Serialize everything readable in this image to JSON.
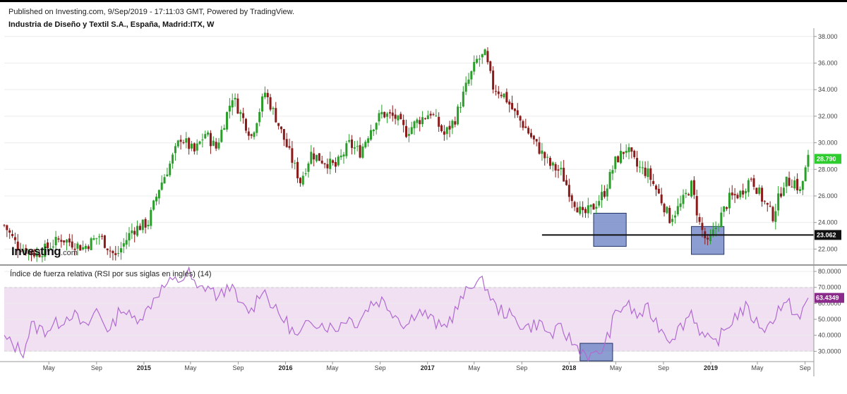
{
  "header": {
    "published": "Published on Investing.com, 9/Sep/2019 - 17:11:03 GMT, Powered by TradingView.",
    "instrument": "Industria de Diseño y Textil S.A., España, Madrid:ITX, W"
  },
  "logo": {
    "main": "Investing",
    "suffix": ".com"
  },
  "colors": {
    "up": "#2a9d2a",
    "down": "#8b1a1a",
    "rsi_line": "#b06ad0",
    "rsi_band": "#f1e0f2",
    "box": "#6f86c6",
    "last_price_tag": "#2ecc2e",
    "rsi_tag": "#8a2a8a"
  },
  "chart_data": [
    {
      "type": "candlestick",
      "title": "Industria de Diseño y Textil S.A., España, Madrid:ITX, W",
      "interval": "weekly",
      "ylim": [
        20.8,
        38.2
      ],
      "y_ticks": [
        "22.000",
        "24.000",
        "26.000",
        "28.000",
        "30.000",
        "32.000",
        "34.000",
        "36.000",
        "38.000"
      ],
      "x_ticks": [
        "May",
        "Sep",
        "2015",
        "May",
        "Sep",
        "2016",
        "May",
        "Sep",
        "2017",
        "May",
        "Sep",
        "2018",
        "May",
        "Sep",
        "2019",
        "May",
        "Sep"
      ],
      "x_range": [
        "2014-01-06",
        "2019-09-09"
      ],
      "close_path": [
        [
          "2014-01-06",
          23.8
        ],
        [
          "2014-02-10",
          22.2
        ],
        [
          "2014-03-31",
          21.6
        ],
        [
          "2014-06-02",
          22.8
        ],
        [
          "2014-07-28",
          22.1
        ],
        [
          "2014-09-08",
          23.0
        ],
        [
          "2014-10-20",
          21.4
        ],
        [
          "2014-12-01",
          23.4
        ],
        [
          "2015-01-12",
          24.0
        ],
        [
          "2015-02-09",
          26.6
        ],
        [
          "2015-03-09",
          28.4
        ],
        [
          "2015-04-06",
          30.4
        ],
        [
          "2015-05-11",
          29.3
        ],
        [
          "2015-06-08",
          30.7
        ],
        [
          "2015-07-06",
          29.6
        ],
        [
          "2015-08-17",
          33.5
        ],
        [
          "2015-09-07",
          32.2
        ],
        [
          "2015-10-05",
          30.5
        ],
        [
          "2015-11-09",
          33.8
        ],
        [
          "2015-12-07",
          31.9
        ],
        [
          "2016-01-11",
          29.2
        ],
        [
          "2016-02-08",
          27.1
        ],
        [
          "2016-03-07",
          29.2
        ],
        [
          "2016-04-04",
          28.7
        ],
        [
          "2016-05-09",
          28.2
        ],
        [
          "2016-06-13",
          29.9
        ],
        [
          "2016-07-11",
          29.3
        ],
        [
          "2016-08-08",
          31.1
        ],
        [
          "2016-09-05",
          32.2
        ],
        [
          "2016-10-10",
          31.9
        ],
        [
          "2016-11-07",
          30.8
        ],
        [
          "2016-12-05",
          31.6
        ],
        [
          "2017-01-09",
          32.3
        ],
        [
          "2017-02-13",
          30.6
        ],
        [
          "2017-03-13",
          31.8
        ],
        [
          "2017-04-10",
          34.2
        ],
        [
          "2017-05-08",
          36.2
        ],
        [
          "2017-05-29",
          36.6
        ],
        [
          "2017-06-19",
          34.2
        ],
        [
          "2017-07-17",
          33.6
        ],
        [
          "2017-08-14",
          32.2
        ],
        [
          "2017-09-11",
          31.1
        ],
        [
          "2017-10-09",
          29.8
        ],
        [
          "2017-11-13",
          28.3
        ],
        [
          "2017-12-11",
          27.8
        ],
        [
          "2018-01-08",
          25.9
        ],
        [
          "2018-02-05",
          24.5
        ],
        [
          "2018-03-05",
          25.2
        ],
        [
          "2018-04-02",
          26.3
        ],
        [
          "2018-04-30",
          28.6
        ],
        [
          "2018-05-28",
          29.6
        ],
        [
          "2018-06-25",
          28.2
        ],
        [
          "2018-07-23",
          27.7
        ],
        [
          "2018-08-20",
          26.1
        ],
        [
          "2018-09-17",
          24.3
        ],
        [
          "2018-10-15",
          25.3
        ],
        [
          "2018-11-12",
          26.8
        ],
        [
          "2018-12-03",
          23.9
        ],
        [
          "2018-12-24",
          22.3
        ],
        [
          "2019-01-21",
          24.1
        ],
        [
          "2019-02-18",
          25.8
        ],
        [
          "2019-03-18",
          26.2
        ],
        [
          "2019-04-15",
          27.4
        ],
        [
          "2019-05-13",
          25.8
        ],
        [
          "2019-06-10",
          24.5
        ],
        [
          "2019-07-08",
          27.0
        ],
        [
          "2019-08-05",
          27.1
        ],
        [
          "2019-08-19",
          26.3
        ],
        [
          "2019-09-09",
          28.79
        ]
      ],
      "last_price": "28.790",
      "horizontal_level": {
        "value": 23.062,
        "label": "23.062",
        "from": "2017-10-23"
      },
      "highlight_boxes": [
        {
          "from": "2018-03-05",
          "to": "2018-05-28",
          "low": 22.2,
          "high": 24.7
        },
        {
          "from": "2018-11-12",
          "to": "2019-02-04",
          "low": 21.6,
          "high": 23.7
        }
      ]
    },
    {
      "type": "line",
      "title": "Índice de fuerza relativa (RSI por sus siglas en inglés) (14)",
      "ylim": [
        24,
        84
      ],
      "y_ticks": [
        "30.0000",
        "40.0000",
        "50.0000",
        "60.0000",
        "70.0000",
        "80.0000"
      ],
      "band": [
        30,
        70
      ],
      "last_value": "63.4349",
      "series": [
        {
          "points": [
            [
              "2014-01-06",
              38
            ],
            [
              "2014-02-03",
              33
            ],
            [
              "2014-02-24",
              30
            ],
            [
              "2014-03-17",
              46
            ],
            [
              "2014-04-21",
              43
            ],
            [
              "2014-05-26",
              48
            ],
            [
              "2014-06-30",
              54
            ],
            [
              "2014-08-04",
              44
            ],
            [
              "2014-09-01",
              56
            ],
            [
              "2014-10-06",
              42
            ],
            [
              "2014-11-03",
              58
            ],
            [
              "2014-12-01",
              50
            ],
            [
              "2015-01-05",
              54
            ],
            [
              "2015-02-02",
              66
            ],
            [
              "2015-03-02",
              72
            ],
            [
              "2015-04-06",
              75
            ],
            [
              "2015-04-27",
              79
            ],
            [
              "2015-05-18",
              68
            ],
            [
              "2015-06-15",
              71
            ],
            [
              "2015-07-13",
              63
            ],
            [
              "2015-08-10",
              72
            ],
            [
              "2015-09-07",
              58
            ],
            [
              "2015-10-05",
              55
            ],
            [
              "2015-11-02",
              70
            ],
            [
              "2015-12-07",
              55
            ],
            [
              "2016-01-04",
              48
            ],
            [
              "2016-02-01",
              38
            ],
            [
              "2016-03-07",
              50
            ],
            [
              "2016-04-04",
              47
            ],
            [
              "2016-05-09",
              44
            ],
            [
              "2016-06-06",
              51
            ],
            [
              "2016-07-04",
              48
            ],
            [
              "2016-08-08",
              60
            ],
            [
              "2016-09-05",
              62
            ],
            [
              "2016-10-03",
              55
            ],
            [
              "2016-11-07",
              46
            ],
            [
              "2016-12-05",
              56
            ],
            [
              "2017-01-02",
              52
            ],
            [
              "2017-02-06",
              44
            ],
            [
              "2017-03-06",
              52
            ],
            [
              "2017-04-03",
              64
            ],
            [
              "2017-05-01",
              74
            ],
            [
              "2017-05-29",
              72
            ],
            [
              "2017-06-26",
              57
            ],
            [
              "2017-07-24",
              54
            ],
            [
              "2017-08-21",
              48
            ],
            [
              "2017-09-18",
              45
            ],
            [
              "2017-10-16",
              48
            ],
            [
              "2017-11-13",
              40
            ],
            [
              "2017-12-11",
              44
            ],
            [
              "2018-01-15",
              34
            ],
            [
              "2018-02-12",
              29
            ],
            [
              "2018-03-05",
              26
            ],
            [
              "2018-04-02",
              33
            ],
            [
              "2018-04-30",
              53
            ],
            [
              "2018-05-28",
              60
            ],
            [
              "2018-06-25",
              52
            ],
            [
              "2018-07-23",
              56
            ],
            [
              "2018-08-20",
              46
            ],
            [
              "2018-09-17",
              38
            ],
            [
              "2018-10-15",
              45
            ],
            [
              "2018-11-12",
              55
            ],
            [
              "2018-12-10",
              40
            ],
            [
              "2019-01-07",
              34
            ],
            [
              "2019-02-04",
              42
            ],
            [
              "2019-03-04",
              52
            ],
            [
              "2019-04-01",
              57
            ],
            [
              "2019-04-29",
              48
            ],
            [
              "2019-05-27",
              44
            ],
            [
              "2019-06-24",
              57
            ],
            [
              "2019-07-22",
              59
            ],
            [
              "2019-08-19",
              50
            ],
            [
              "2019-09-09",
              63.43
            ]
          ]
        }
      ],
      "highlight_boxes": [
        {
          "from": "2018-01-29",
          "to": "2018-04-23",
          "low": 24,
          "high": 35
        }
      ]
    }
  ],
  "rsi_label": "Índice de fuerza relativa (RSI por sus siglas en inglés) (14)"
}
